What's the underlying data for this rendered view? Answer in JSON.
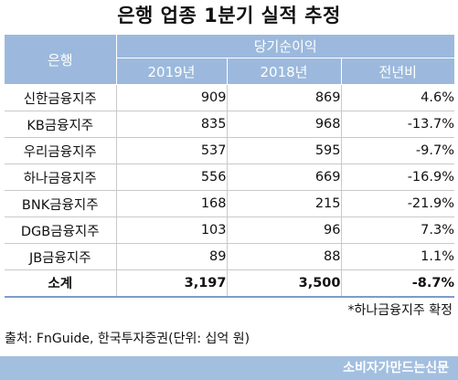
{
  "title": "은행 업종 1분기 실적 추정",
  "table": {
    "bank_header": "은행",
    "group_header": "당기순이익",
    "col_2019": "2019년",
    "col_2018": "2018년",
    "col_change": "전년비",
    "rows": [
      {
        "bank": "신한금융지주",
        "y2019": "909",
        "y2018": "869",
        "change": "4.6%"
      },
      {
        "bank": "KB금융지주",
        "y2019": "835",
        "y2018": "968",
        "change": "-13.7%"
      },
      {
        "bank": "우리금융지주",
        "y2019": "537",
        "y2018": "595",
        "change": "-9.7%"
      },
      {
        "bank": "하나금융지주",
        "y2019": "556",
        "y2018": "669",
        "change": "-16.9%"
      },
      {
        "bank": "BNK금융지주",
        "y2019": "168",
        "y2018": "215",
        "change": "-21.9%"
      },
      {
        "bank": "DGB금융지주",
        "y2019": "103",
        "y2018": "96",
        "change": "7.3%"
      },
      {
        "bank": "JB금융지주",
        "y2019": "89",
        "y2018": "88",
        "change": "1.1%"
      }
    ],
    "total": {
      "bank": "소계",
      "y2019": "3,197",
      "y2018": "3,500",
      "change": "-8.7%"
    }
  },
  "note": "*하나금융지주 확정",
  "source": "출처: FnGuide, 한국투자증권(단위: 십억 원)",
  "footer": "소비자가만드는신문",
  "colors": {
    "header_bg": "#9cb9dd",
    "footer_bg": "#a3bfe0",
    "total_border": "#7b9ccd"
  }
}
